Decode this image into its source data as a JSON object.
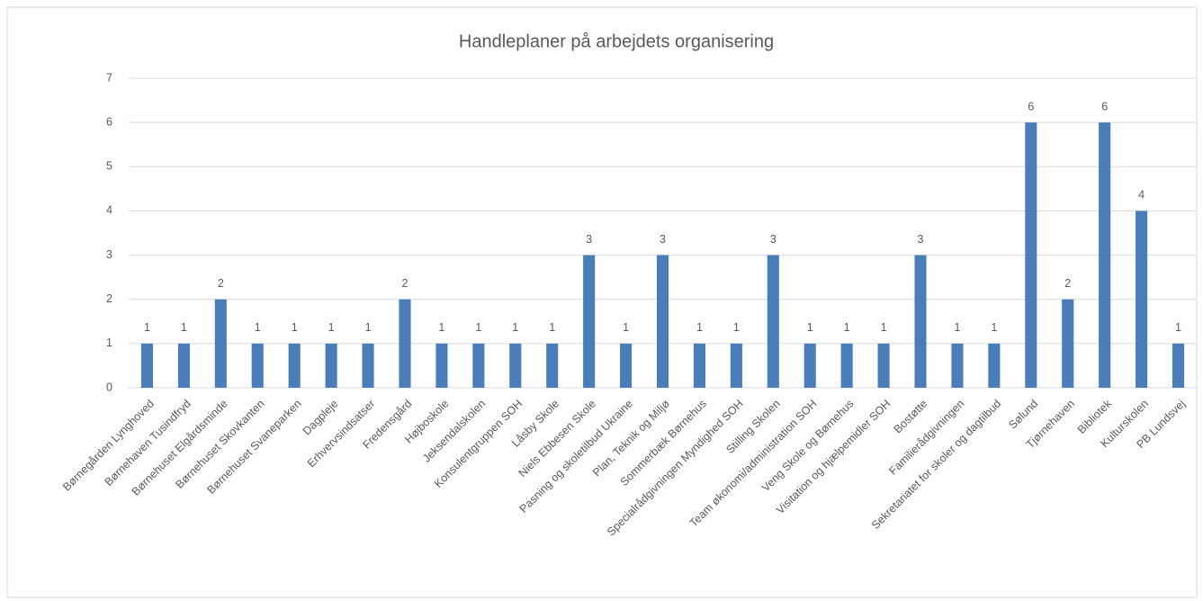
{
  "chart_data": {
    "type": "bar",
    "title": "Handleplaner på arbejdets organisering",
    "categories": [
      "Børnegården Lynghoved",
      "Børnehaven Tusindfryd",
      "Børnehuset Elgårdsminde",
      "Børnehuset Skovkanten",
      "Børnehuset Svaneparken",
      "Dagpleje",
      "Erhvervsindsatser",
      "Fredensgård",
      "Højboskole",
      "Jeksendalskolen",
      "Konsulentgruppen SOH",
      "Låsby Skole",
      "Niels Ebbesen Skole",
      "Pasning og skoletilbud Ukraine",
      "Plan, Teknik og Miljø",
      "Sommerbæk Børnehus",
      "Specialrådgivningen Myndighed SOH",
      "Stilling Skolen",
      "Team økonomi/administration SOH",
      "Veng Skole og Børnehus",
      "Visitation og hjælpemidler SOH",
      "Bostøtte",
      "Familierådgivningen",
      "Sekretariatet for skoler og dagtilbud",
      "Sølund",
      "Tjørnehaven",
      "Bibliotek",
      "Kulturskolen",
      "PB Lundsvej"
    ],
    "values": [
      1,
      1,
      2,
      1,
      1,
      1,
      1,
      2,
      1,
      1,
      1,
      1,
      3,
      1,
      3,
      1,
      1,
      3,
      1,
      1,
      1,
      3,
      1,
      1,
      6,
      2,
      6,
      4,
      1
    ],
    "color": "#4a7ebb",
    "ylim": [
      0,
      7
    ],
    "yticks": [
      0,
      1,
      2,
      3,
      4,
      5,
      6,
      7
    ],
    "grid": true,
    "data_labels": true
  }
}
